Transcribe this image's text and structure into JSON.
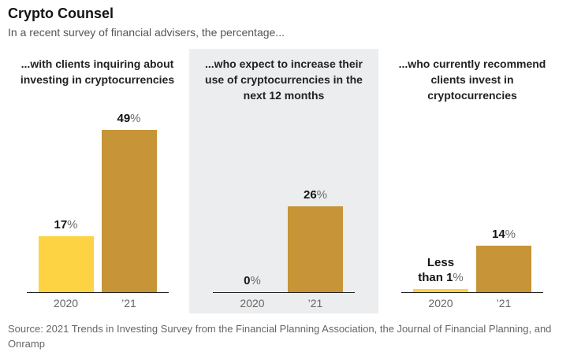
{
  "header": {
    "title": "Crypto Counsel",
    "subtitle": "In a recent survey of financial advisers, the percentage..."
  },
  "colors": {
    "bar_2020": "#FDD344",
    "bar_2021": "#C79437",
    "panel_highlight_bg": "#ECEDEE",
    "axis": "#222222"
  },
  "chart_data": [
    {
      "type": "bar",
      "title": "...with clients inquiring about investing in cryptocurrencies",
      "categories": [
        "2020",
        "’21"
      ],
      "values": [
        17,
        49
      ],
      "value_labels": [
        "17%",
        "49%"
      ],
      "ylim": [
        0,
        49
      ],
      "grid": false,
      "highlighted": false
    },
    {
      "type": "bar",
      "title": "...who expect to increase their use of cryptocurrencies in the next 12 months",
      "categories": [
        "2020",
        "’21"
      ],
      "values": [
        0,
        26
      ],
      "value_labels": [
        "0%",
        "26%"
      ],
      "ylim": [
        0,
        49
      ],
      "grid": false,
      "highlighted": true
    },
    {
      "type": "bar",
      "title": "...who currently recommend clients invest in cryptocurrencies",
      "categories": [
        "2020",
        "’21"
      ],
      "values": [
        0.5,
        14
      ],
      "value_labels": [
        "Less\nthan 1%",
        "14%"
      ],
      "ylim": [
        0,
        49
      ],
      "grid": false,
      "highlighted": false
    }
  ],
  "footer": {
    "source": "Source: 2021 Trends in Investing Survey from the Financial Planning Association, the Journal of Financial Planning, and Onramp"
  }
}
